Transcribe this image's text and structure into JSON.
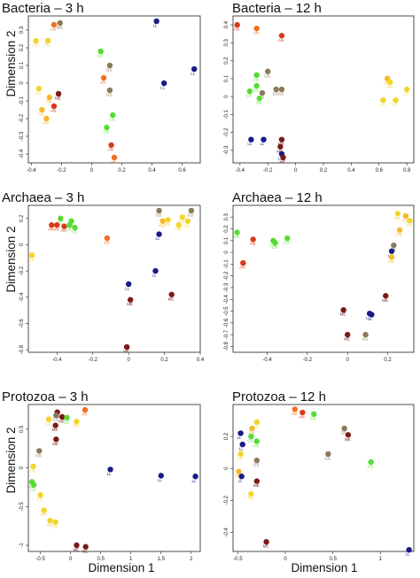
{
  "figure": {
    "ylabel": "Dimension 2",
    "xlabel": "Dimension 1"
  },
  "colors": {
    "yellow": "#f2d52a",
    "gold": "#f5b82a",
    "orange": "#f07020",
    "red": "#d83a1a",
    "maroon": "#7a1a1a",
    "green": "#55dd33",
    "brown": "#8a7a5a",
    "navy": "#1a1a88"
  },
  "chart_data": [
    {
      "type": "scatter",
      "title": "Bacteria – 3 h",
      "xlim": [
        -0.42,
        0.72
      ],
      "ylim": [
        -0.45,
        0.38
      ],
      "xticks": [
        -0.4,
        -0.2,
        0.0,
        0.2,
        0.4,
        0.6
      ],
      "yticks": [
        -0.4,
        -0.3,
        -0.2,
        -0.1,
        0.0,
        0.1,
        0.2,
        0.3
      ],
      "points": [
        {
          "x": -0.37,
          "y": 0.24,
          "c": "yellow",
          "label": "CS"
        },
        {
          "x": -0.29,
          "y": 0.24,
          "c": "yellow",
          "label": "FM"
        },
        {
          "x": -0.25,
          "y": 0.33,
          "c": "orange",
          "label": "AN"
        },
        {
          "x": -0.21,
          "y": 0.34,
          "c": "brown",
          "label": "MG"
        },
        {
          "x": 0.43,
          "y": 0.35,
          "c": "navy",
          "label": "LL"
        },
        {
          "x": 0.06,
          "y": 0.18,
          "c": "green",
          "label": "CS"
        },
        {
          "x": 0.12,
          "y": 0.1,
          "c": "brown",
          "label": "GS"
        },
        {
          "x": 0.68,
          "y": 0.08,
          "c": "navy",
          "label": "LL"
        },
        {
          "x": 0.08,
          "y": 0.03,
          "c": "orange",
          "label": "AN"
        },
        {
          "x": 0.48,
          "y": 0.0,
          "c": "navy",
          "label": "LL"
        },
        {
          "x": -0.35,
          "y": -0.03,
          "c": "yellow",
          "label": "CS"
        },
        {
          "x": -0.22,
          "y": -0.06,
          "c": "maroon",
          "label": "ME"
        },
        {
          "x": 0.12,
          "y": -0.04,
          "c": "brown",
          "label": "GS"
        },
        {
          "x": -0.28,
          "y": -0.08,
          "c": "gold",
          "label": "FM"
        },
        {
          "x": -0.25,
          "y": -0.13,
          "c": "red",
          "label": "AN"
        },
        {
          "x": -0.33,
          "y": -0.15,
          "c": "gold",
          "label": "CS"
        },
        {
          "x": -0.3,
          "y": -0.2,
          "c": "gold",
          "label": "FM"
        },
        {
          "x": 0.14,
          "y": -0.18,
          "c": "green",
          "label": "CS"
        },
        {
          "x": 0.1,
          "y": -0.25,
          "c": "green",
          "label": "CS"
        },
        {
          "x": 0.13,
          "y": -0.35,
          "c": "red",
          "label": "AN"
        },
        {
          "x": 0.15,
          "y": -0.42,
          "c": "orange",
          "label": "AN"
        }
      ]
    },
    {
      "type": "scatter",
      "title": "Bacteria – 12 h",
      "xlim": [
        -0.45,
        0.85
      ],
      "ylim": [
        -0.37,
        0.45
      ],
      "xticks": [
        -0.4,
        -0.2,
        0.0,
        0.2,
        0.4,
        0.6,
        0.8
      ],
      "yticks": [
        -0.3,
        -0.2,
        -0.1,
        0.0,
        0.1,
        0.2,
        0.3,
        0.4
      ],
      "points": [
        {
          "x": -0.42,
          "y": 0.4,
          "c": "red",
          "label": "AN"
        },
        {
          "x": -0.28,
          "y": 0.38,
          "c": "orange",
          "label": "AN"
        },
        {
          "x": -0.1,
          "y": 0.34,
          "c": "red",
          "label": "AN"
        },
        {
          "x": -0.2,
          "y": 0.14,
          "c": "brown",
          "label": "GS"
        },
        {
          "x": -0.28,
          "y": 0.12,
          "c": "green",
          "label": "CS"
        },
        {
          "x": -0.28,
          "y": 0.06,
          "c": "green",
          "label": "CS"
        },
        {
          "x": -0.33,
          "y": 0.03,
          "c": "green",
          "label": "CS"
        },
        {
          "x": -0.24,
          "y": 0.02,
          "c": "brown",
          "label": "GS"
        },
        {
          "x": -0.14,
          "y": 0.04,
          "c": "brown",
          "label": "GS"
        },
        {
          "x": -0.1,
          "y": 0.04,
          "c": "brown",
          "label": "GS"
        },
        {
          "x": -0.26,
          "y": -0.01,
          "c": "green",
          "label": "CS"
        },
        {
          "x": 0.66,
          "y": 0.1,
          "c": "gold",
          "label": "FM"
        },
        {
          "x": 0.68,
          "y": 0.08,
          "c": "yellow",
          "label": "FM"
        },
        {
          "x": 0.8,
          "y": 0.04,
          "c": "yellow",
          "label": "CS"
        },
        {
          "x": 0.63,
          "y": -0.02,
          "c": "yellow",
          "label": "CS"
        },
        {
          "x": 0.72,
          "y": -0.02,
          "c": "yellow",
          "label": "CS"
        },
        {
          "x": -0.32,
          "y": -0.24,
          "c": "navy",
          "label": "LL"
        },
        {
          "x": -0.23,
          "y": -0.24,
          "c": "navy",
          "label": "LL"
        },
        {
          "x": -0.1,
          "y": -0.24,
          "c": "maroon",
          "label": "ME"
        },
        {
          "x": -0.11,
          "y": -0.28,
          "c": "maroon",
          "label": "ME"
        },
        {
          "x": -0.1,
          "y": -0.32,
          "c": "navy",
          "label": "LL"
        },
        {
          "x": -0.09,
          "y": -0.34,
          "c": "maroon",
          "label": "ME"
        }
      ]
    },
    {
      "type": "scatter",
      "title": "Archaea – 3 h",
      "xlim": [
        -0.56,
        0.4
      ],
      "ylim": [
        -0.82,
        0.3
      ],
      "xticks": [
        -0.4,
        -0.2,
        0.0,
        0.2,
        0.4
      ],
      "yticks": [
        -0.8,
        -0.6,
        -0.4,
        -0.2,
        0.0,
        0.2
      ],
      "points": [
        {
          "x": -0.38,
          "y": 0.2,
          "c": "green",
          "label": "CS"
        },
        {
          "x": -0.32,
          "y": 0.18,
          "c": "green",
          "label": "CS"
        },
        {
          "x": -0.43,
          "y": 0.15,
          "c": "red",
          "label": "AN"
        },
        {
          "x": -0.4,
          "y": 0.15,
          "c": "red",
          "label": "AN"
        },
        {
          "x": -0.36,
          "y": 0.14,
          "c": "red",
          "label": "AN"
        },
        {
          "x": -0.33,
          "y": 0.15,
          "c": "green",
          "label": "CS"
        },
        {
          "x": -0.3,
          "y": 0.13,
          "c": "green",
          "label": "CS"
        },
        {
          "x": -0.12,
          "y": 0.05,
          "c": "orange",
          "label": "AN"
        },
        {
          "x": 0.17,
          "y": 0.26,
          "c": "brown",
          "label": "GS"
        },
        {
          "x": 0.35,
          "y": 0.26,
          "c": "brown",
          "label": "GS"
        },
        {
          "x": 0.3,
          "y": 0.21,
          "c": "yellow",
          "label": "CS"
        },
        {
          "x": 0.22,
          "y": 0.19,
          "c": "yellow",
          "label": "FM"
        },
        {
          "x": 0.19,
          "y": 0.18,
          "c": "gold",
          "label": "FM"
        },
        {
          "x": 0.33,
          "y": 0.18,
          "c": "yellow",
          "label": "CS"
        },
        {
          "x": 0.28,
          "y": 0.15,
          "c": "yellow",
          "label": "FM"
        },
        {
          "x": 0.17,
          "y": 0.08,
          "c": "navy",
          "label": "LL"
        },
        {
          "x": -0.54,
          "y": -0.08,
          "c": "yellow",
          "label": "CS"
        },
        {
          "x": 0.15,
          "y": -0.2,
          "c": "navy",
          "label": "LL"
        },
        {
          "x": 0.0,
          "y": -0.3,
          "c": "navy",
          "label": "LL"
        },
        {
          "x": 0.24,
          "y": -0.38,
          "c": "maroon",
          "label": "ME"
        },
        {
          "x": 0.01,
          "y": -0.42,
          "c": "maroon",
          "label": "ME"
        },
        {
          "x": -0.01,
          "y": -0.78,
          "c": "maroon",
          "label": "ME"
        }
      ]
    },
    {
      "type": "scatter",
      "title": "Archaea – 12 h",
      "xlim": [
        -0.57,
        0.33
      ],
      "ylim": [
        -0.85,
        0.4
      ],
      "xticks": [
        -0.4,
        -0.2,
        0.0,
        0.2
      ],
      "yticks": [
        -0.8,
        -0.7,
        -0.6,
        -0.5,
        -0.4,
        -0.3,
        -0.2,
        -0.1,
        0.0,
        0.1,
        0.2,
        0.3
      ],
      "points": [
        {
          "x": 0.25,
          "y": 0.33,
          "c": "yellow",
          "label": "FM"
        },
        {
          "x": 0.29,
          "y": 0.31,
          "c": "gold",
          "label": "CS"
        },
        {
          "x": 0.31,
          "y": 0.27,
          "c": "yellow",
          "label": "CS"
        },
        {
          "x": -0.55,
          "y": 0.17,
          "c": "green",
          "label": "CS"
        },
        {
          "x": 0.26,
          "y": 0.19,
          "c": "gold",
          "label": "FM"
        },
        {
          "x": -0.3,
          "y": 0.12,
          "c": "green",
          "label": "CS"
        },
        {
          "x": -0.37,
          "y": 0.1,
          "c": "green",
          "label": "CS"
        },
        {
          "x": -0.36,
          "y": 0.08,
          "c": "green",
          "label": "CS"
        },
        {
          "x": -0.47,
          "y": 0.11,
          "c": "red",
          "label": "AN"
        },
        {
          "x": 0.23,
          "y": 0.06,
          "c": "brown",
          "label": "GS"
        },
        {
          "x": 0.22,
          "y": 0.01,
          "c": "navy",
          "label": "LL"
        },
        {
          "x": 0.22,
          "y": -0.04,
          "c": "gold",
          "label": "FM"
        },
        {
          "x": -0.52,
          "y": -0.09,
          "c": "red",
          "label": "AN"
        },
        {
          "x": 0.19,
          "y": -0.37,
          "c": "maroon",
          "label": "ME"
        },
        {
          "x": -0.02,
          "y": -0.49,
          "c": "maroon",
          "label": "ME"
        },
        {
          "x": 0.11,
          "y": -0.52,
          "c": "navy",
          "label": "LL"
        },
        {
          "x": 0.12,
          "y": -0.53,
          "c": "navy",
          "label": "LL"
        },
        {
          "x": 0.0,
          "y": -0.7,
          "c": "maroon",
          "label": "ME"
        },
        {
          "x": 0.09,
          "y": -0.7,
          "c": "brown",
          "label": "GS"
        }
      ]
    },
    {
      "type": "scatter",
      "title": "Protozoa – 3 h",
      "xlim": [
        -0.7,
        2.15
      ],
      "ylim": [
        -1.08,
        0.82
      ],
      "xticks": [
        -0.5,
        0.0,
        0.5,
        1.0,
        1.5,
        2.0
      ],
      "yticks": [
        -1.0,
        -0.5,
        0.0,
        0.5
      ],
      "points": [
        {
          "x": -0.22,
          "y": 0.72,
          "c": "maroon",
          "label": "ME"
        },
        {
          "x": -0.24,
          "y": 0.68,
          "c": "brown",
          "label": "GS"
        },
        {
          "x": -0.14,
          "y": 0.66,
          "c": "maroon",
          "label": "ME"
        },
        {
          "x": -0.06,
          "y": 0.65,
          "c": "green",
          "label": "CS"
        },
        {
          "x": -0.36,
          "y": 0.63,
          "c": "yellow",
          "label": "CS"
        },
        {
          "x": 0.24,
          "y": 0.75,
          "c": "orange",
          "label": "AN"
        },
        {
          "x": 0.1,
          "y": 0.6,
          "c": "yellow",
          "label": "FM"
        },
        {
          "x": -0.25,
          "y": 0.55,
          "c": "maroon",
          "label": "ME"
        },
        {
          "x": -0.24,
          "y": 0.37,
          "c": "maroon",
          "label": "ME"
        },
        {
          "x": -0.52,
          "y": 0.22,
          "c": "brown",
          "label": "GS"
        },
        {
          "x": -0.62,
          "y": 0.02,
          "c": "yellow",
          "label": "CS"
        },
        {
          "x": 0.66,
          "y": -0.02,
          "c": "navy",
          "label": "LL"
        },
        {
          "x": 1.5,
          "y": -0.1,
          "c": "navy",
          "label": "LL"
        },
        {
          "x": 2.07,
          "y": -0.11,
          "c": "navy",
          "label": "LL"
        },
        {
          "x": -0.64,
          "y": -0.18,
          "c": "green",
          "label": "CS"
        },
        {
          "x": -0.61,
          "y": -0.22,
          "c": "green",
          "label": "CS"
        },
        {
          "x": -0.5,
          "y": -0.35,
          "c": "yellow",
          "label": "CS"
        },
        {
          "x": -0.44,
          "y": -0.55,
          "c": "yellow",
          "label": "FM"
        },
        {
          "x": -0.34,
          "y": -0.68,
          "c": "yellow",
          "label": "FM"
        },
        {
          "x": -0.25,
          "y": -0.7,
          "c": "yellow",
          "label": "CS"
        },
        {
          "x": 0.1,
          "y": -1.0,
          "c": "maroon",
          "label": "ME"
        },
        {
          "x": 0.25,
          "y": -1.02,
          "c": "maroon",
          "label": "ME"
        }
      ]
    },
    {
      "type": "scatter",
      "title": "Protozoa – 12 h",
      "xlim": [
        -0.55,
        1.35
      ],
      "ylim": [
        -0.52,
        0.4
      ],
      "xticks": [
        -0.5,
        0.0,
        0.5,
        1.0
      ],
      "yticks": [
        -0.4,
        -0.2,
        0.0,
        0.2
      ],
      "points": [
        {
          "x": 0.1,
          "y": 0.37,
          "c": "orange",
          "label": "AN"
        },
        {
          "x": 0.18,
          "y": 0.35,
          "c": "red",
          "label": "AN"
        },
        {
          "x": 0.3,
          "y": 0.34,
          "c": "green",
          "label": "CS"
        },
        {
          "x": -0.3,
          "y": 0.29,
          "c": "yellow",
          "label": "CS"
        },
        {
          "x": -0.35,
          "y": 0.25,
          "c": "gold",
          "label": "FM"
        },
        {
          "x": -0.47,
          "y": 0.22,
          "c": "navy",
          "label": "LL"
        },
        {
          "x": -0.36,
          "y": 0.2,
          "c": "green",
          "label": "CS"
        },
        {
          "x": 0.62,
          "y": 0.25,
          "c": "brown",
          "label": "GS"
        },
        {
          "x": 0.66,
          "y": 0.21,
          "c": "maroon",
          "label": "ME"
        },
        {
          "x": -0.3,
          "y": 0.17,
          "c": "green",
          "label": "CS"
        },
        {
          "x": -0.45,
          "y": 0.15,
          "c": "navy",
          "label": "LL"
        },
        {
          "x": -0.47,
          "y": 0.09,
          "c": "yellow",
          "label": "CS"
        },
        {
          "x": 0.45,
          "y": 0.09,
          "c": "brown",
          "label": "GS"
        },
        {
          "x": -0.3,
          "y": 0.05,
          "c": "brown",
          "label": "GS"
        },
        {
          "x": 0.9,
          "y": 0.04,
          "c": "green",
          "label": "CS"
        },
        {
          "x": -0.49,
          "y": -0.02,
          "c": "gold",
          "label": "FM"
        },
        {
          "x": -0.46,
          "y": -0.05,
          "c": "navy",
          "label": "LL"
        },
        {
          "x": -0.3,
          "y": -0.08,
          "c": "maroon",
          "label": "ME"
        },
        {
          "x": -0.36,
          "y": -0.16,
          "c": "yellow",
          "label": "FM"
        },
        {
          "x": -0.2,
          "y": -0.46,
          "c": "maroon",
          "label": "ME"
        },
        {
          "x": 1.3,
          "y": -0.51,
          "c": "navy",
          "label": "LL"
        }
      ]
    }
  ]
}
